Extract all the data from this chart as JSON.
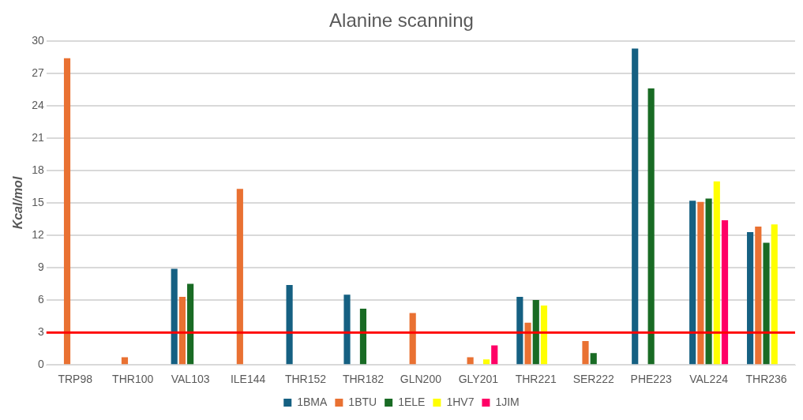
{
  "chart_data": {
    "type": "bar",
    "title": "Alanine scanning",
    "ylabel": "Kcal/mol",
    "categories": [
      "TRP98",
      "THR100",
      "VAL103",
      "ILE144",
      "THR152",
      "THR182",
      "GLN200",
      "GLY201",
      "THR221",
      "SER222",
      "PHE223",
      "VAL224",
      "THR236"
    ],
    "series": [
      {
        "name": "1BMA",
        "color": "#156082",
        "values": [
          null,
          null,
          8.9,
          null,
          7.4,
          6.5,
          null,
          null,
          6.3,
          null,
          29.3,
          15.2,
          12.3
        ]
      },
      {
        "name": "1BTU",
        "color": "#e97132",
        "values": [
          28.4,
          0.7,
          6.3,
          16.3,
          null,
          null,
          4.8,
          0.7,
          3.9,
          2.2,
          null,
          15.1,
          12.8
        ]
      },
      {
        "name": "1ELE",
        "color": "#196b24",
        "values": [
          null,
          null,
          7.5,
          null,
          null,
          5.2,
          null,
          null,
          6.0,
          1.1,
          25.6,
          15.4,
          11.3
        ]
      },
      {
        "name": "1HV7",
        "color": "#ffff00",
        "values": [
          null,
          null,
          null,
          null,
          null,
          null,
          null,
          0.5,
          5.5,
          null,
          null,
          17.0,
          13.0
        ]
      },
      {
        "name": "1JIM",
        "color": "#ff0066",
        "values": [
          null,
          null,
          null,
          null,
          null,
          null,
          null,
          1.8,
          null,
          null,
          null,
          13.4,
          null
        ]
      }
    ],
    "ylim": [
      0,
      30
    ],
    "yticks": [
      0,
      3,
      6,
      9,
      12,
      15,
      18,
      21,
      24,
      27,
      30
    ],
    "grid": "y",
    "legend": "bottom",
    "ref_lines": [
      {
        "axis": "y",
        "value": 3,
        "color": "#ff0000"
      }
    ]
  }
}
